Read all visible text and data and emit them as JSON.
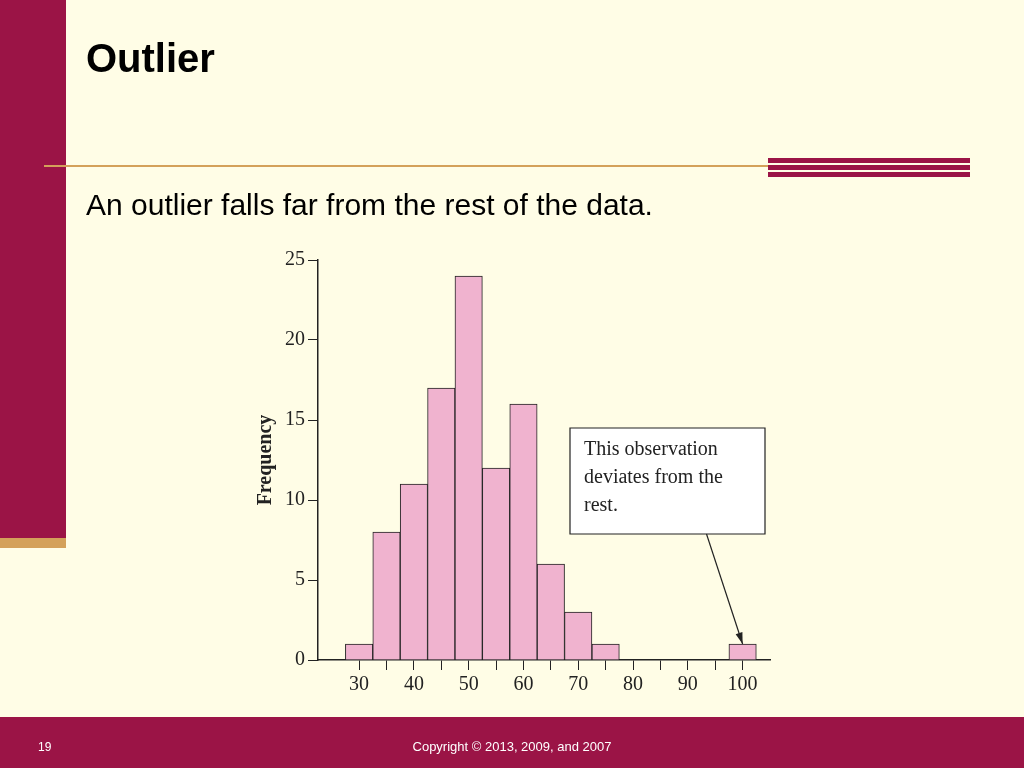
{
  "chart_data": {
    "type": "histogram",
    "title": "Outlier",
    "subtitle": "An outlier falls far from the rest of the data.",
    "ylabel": "Frequency",
    "bins": [
      27.5,
      32.5,
      37.5,
      42.5,
      47.5,
      52.5,
      57.5,
      62.5,
      67.5,
      72.5,
      77.5,
      82.5,
      87.5,
      92.5,
      97.5,
      102.5
    ],
    "values": [
      1,
      8,
      11,
      17,
      24,
      12,
      16,
      6,
      3,
      1,
      0,
      0,
      0,
      0,
      1
    ],
    "color": "#f0b3cf",
    "xlim": [
      22.5,
      105
    ],
    "xticks": [
      30,
      {
        "value": 35,
        "label": null
      },
      40,
      {
        "value": 45,
        "label": null
      },
      50,
      {
        "value": 55,
        "label": null
      },
      60,
      {
        "value": 65,
        "label": null
      },
      70,
      {
        "value": 75,
        "label": null
      },
      80,
      {
        "value": 85,
        "label": null
      },
      90,
      {
        "value": 95,
        "label": null
      },
      100
    ],
    "ylim": [
      0,
      25
    ],
    "yticks": [
      0,
      5,
      10,
      15,
      20,
      25
    ],
    "grid": false,
    "legend": false,
    "annotations": [
      {
        "text": "This observation deviates from the rest.",
        "x": 100,
        "y": 1
      },
      "19",
      "Copyright © 2013, 2009, and 2007"
    ]
  }
}
